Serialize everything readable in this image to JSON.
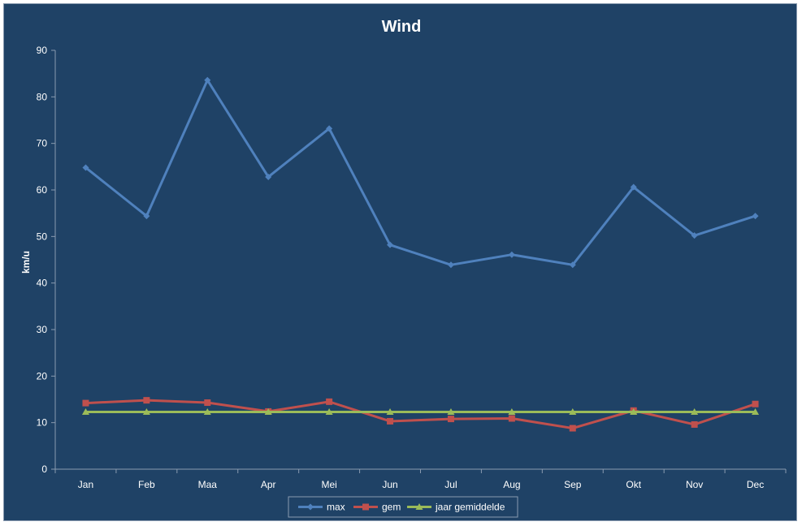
{
  "chart_data": {
    "type": "line",
    "title": "Wind",
    "xlabel": "",
    "ylabel": "km/u",
    "ylim": [
      0,
      90
    ],
    "yticks": [
      "0",
      "10",
      "20",
      "30",
      "40",
      "50",
      "60",
      "70",
      "80",
      "90"
    ],
    "categories": [
      "Jan",
      "Feb",
      "Maa",
      "Apr",
      "Mei",
      "Jun",
      "Jul",
      "Aug",
      "Sep",
      "Okt",
      "Nov",
      "Dec"
    ],
    "grid": false,
    "legend_position": "bottom",
    "series": [
      {
        "name": "max",
        "color": "#4f81bd",
        "marker": "diamond",
        "values": [
          64.8,
          54.4,
          83.6,
          62.8,
          73.2,
          48.2,
          43.9,
          46.1,
          43.9,
          60.6,
          50.2,
          54.4
        ]
      },
      {
        "name": "gem",
        "color": "#c0504d",
        "marker": "square",
        "values": [
          14.2,
          14.8,
          14.3,
          12.4,
          14.5,
          10.3,
          10.8,
          10.9,
          8.8,
          12.6,
          9.6,
          14.0
        ]
      },
      {
        "name": "jaar gemiddelde",
        "color": "#9bbb59",
        "marker": "triangle",
        "values": [
          12.3,
          12.3,
          12.3,
          12.3,
          12.3,
          12.3,
          12.3,
          12.3,
          12.3,
          12.3,
          12.3,
          12.3
        ]
      }
    ]
  }
}
